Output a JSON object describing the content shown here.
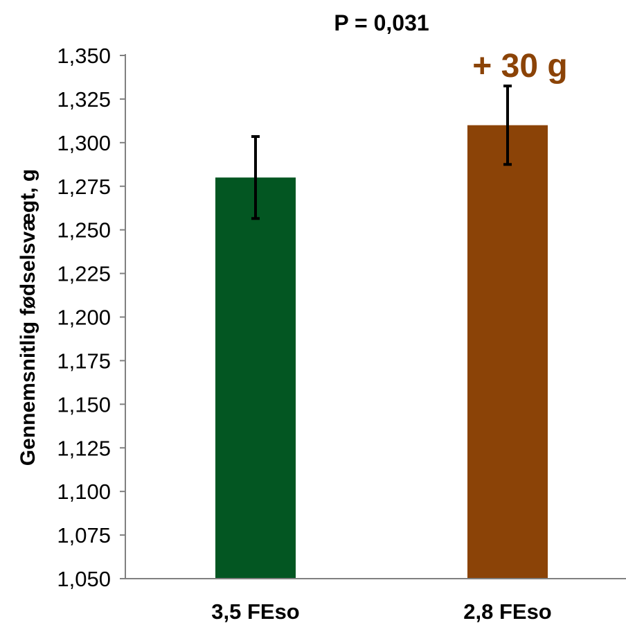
{
  "chart_data": {
    "type": "bar",
    "title": "P = 0,031",
    "ylabel": "Gennemsnitlig fødselsvægt, g",
    "xlabel": "",
    "categories": [
      "3,5 FEso",
      "2,8 FEso"
    ],
    "values": [
      1.28,
      1.31
    ],
    "error": [
      0.0235,
      0.0225
    ],
    "colors": [
      "#035622",
      "#8b4307"
    ],
    "ylim": [
      1.05,
      1.35
    ],
    "yticks": [
      "1,050",
      "1,075",
      "1,100",
      "1,125",
      "1,150",
      "1,175",
      "1,200",
      "1,225",
      "1,250",
      "1,275",
      "1,300",
      "1,325",
      "1,350"
    ],
    "annotation": {
      "text": "+ 30 g",
      "color": "#8b4307",
      "category_index": 1
    },
    "grid": false,
    "legend": "none"
  }
}
